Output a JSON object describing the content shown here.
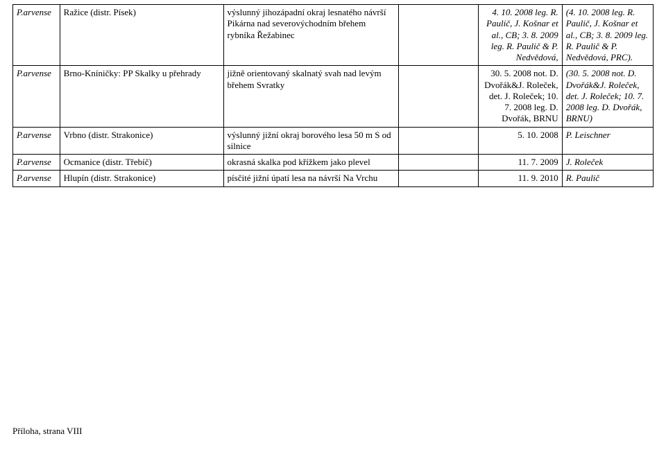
{
  "footer": "Příloha, strana VIII",
  "table": {
    "columns": [
      {
        "key": "taxon",
        "widthPx": 66,
        "align": "left",
        "italic": true
      },
      {
        "key": "locality",
        "widthPx": 230,
        "align": "left"
      },
      {
        "key": "habitat",
        "widthPx": 246,
        "align": "left"
      },
      {
        "key": "blank",
        "widthPx": 112,
        "align": "right"
      },
      {
        "key": "record",
        "widthPx": 118,
        "align": "right"
      },
      {
        "key": "source",
        "widthPx": 128,
        "align": "left"
      }
    ],
    "rows": [
      {
        "taxon": "P.arvense",
        "locality": "Ražice (distr. Písek)",
        "habitat": "výslunný jihozápadní okraj lesnatého návrší Pikárna nad severovýchodním břehem rybníka Řežabinec",
        "blank": "",
        "record": "4. 10. 2008 leg. R. Paulič, J. Košnar et al., CB; 3. 8. 2009 leg. R. Paulič & P. Nedvědová,",
        "source": "(4. 10. 2008 leg. R. Paulič, J. Košnar et al., CB; 3. 8. 2009 leg. R. Paulič & P. Nedvědová, PRC).",
        "recordItalic": true,
        "sourceItalic": true
      },
      {
        "taxon": "P.arvense",
        "locality": "Brno-Kníničky: PP Skalky u přehrady",
        "habitat": "jižně orientovaný skalnatý svah nad levým břehem Svratky",
        "blank": "",
        "record": "30. 5. 2008 not. D. Dvořák&J. Roleček, det. J. Roleček; 10. 7. 2008 leg. D. Dvořák, BRNU",
        "source": "(30. 5. 2008 not. D. Dvořák&J. Roleček, det. J. Roleček; 10. 7. 2008 leg. D. Dvořák, BRNU)",
        "recordItalic": false,
        "sourceItalic": true
      },
      {
        "taxon": "P.arvense",
        "locality": "Vrbno (distr. Strakonice)",
        "habitat": "výslunný jižní okraj borového lesa 50 m S od silnice",
        "blank": "",
        "record": "5. 10. 2008",
        "source": "P. Leischner",
        "recordItalic": false,
        "sourceItalic": true
      },
      {
        "taxon": "P.arvense",
        "locality": "Ocmanice (distr. Třebíč)",
        "habitat": "okrasná skalka pod křížkem jako plevel",
        "blank": "",
        "record": "11. 7. 2009",
        "source": "J. Roleček",
        "recordItalic": false,
        "sourceItalic": true
      },
      {
        "taxon": "P.arvense",
        "locality": "Hlupín (distr. Strakonice)",
        "habitat": "písčité jižní úpatí lesa na návrší Na Vrchu",
        "blank": "",
        "record": "11. 9. 2010",
        "source": "R. Paulič",
        "recordItalic": false,
        "sourceItalic": true
      }
    ]
  }
}
